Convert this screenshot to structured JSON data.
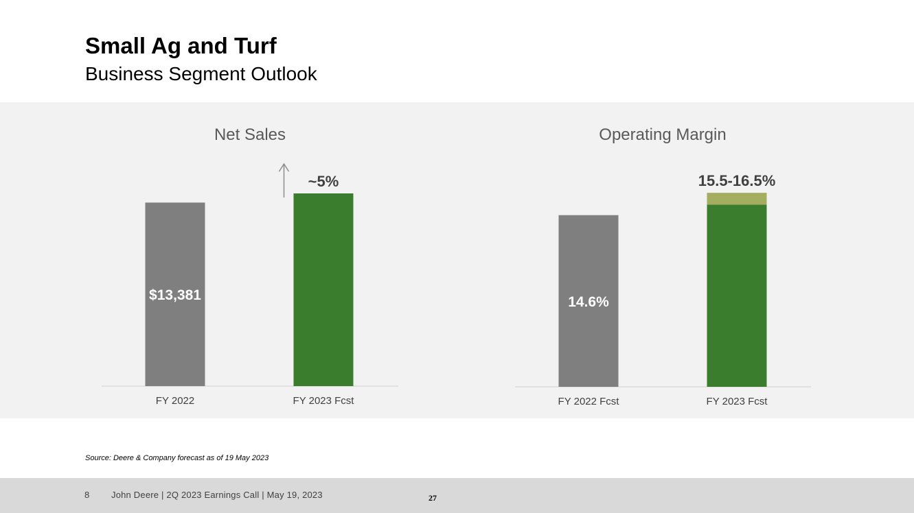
{
  "header": {
    "title": "Small Ag and Turf",
    "subtitle": "Business Segment Outlook"
  },
  "chart_data": [
    {
      "type": "bar",
      "title": "Net Sales",
      "categories": [
        "FY 2022",
        "FY 2023 Fcst"
      ],
      "values": [
        13381,
        14050
      ],
      "value_labels": [
        "$13,381",
        "~5%"
      ],
      "colors": [
        "#7f7f7f",
        "#3a7d2c"
      ],
      "arrow": "up",
      "ylim": [
        0,
        16000
      ]
    },
    {
      "type": "bar",
      "title": "Operating Margin",
      "categories": [
        "FY 2022 Fcst",
        "FY 2023 Fcst"
      ],
      "values": [
        14.6,
        15.5
      ],
      "range_top": 16.5,
      "value_labels": [
        "14.6%",
        "15.5-16.5%"
      ],
      "colors": [
        "#7f7f7f",
        "#3a7d2c"
      ],
      "range_color": "#a4ae5e",
      "ylim": [
        0,
        17.5
      ]
    }
  ],
  "source": "Source: Deere & Company forecast as of 19 May 2023",
  "footer": {
    "page_number": "8",
    "text": "John Deere | 2Q 2023 Earnings Call | May 19, 2023",
    "slide_number": "27"
  }
}
